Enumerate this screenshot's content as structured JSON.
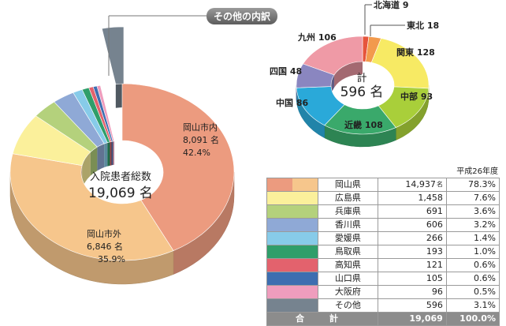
{
  "callout_label": "その他の内訳",
  "year_label": "平成26年度",
  "main_chart": {
    "center_title": "入院患者総数",
    "center_value": "19,069 名"
  },
  "region_chart": {
    "center_title": "計",
    "center_value": "596 名"
  },
  "chart_data": [
    {
      "type": "pie",
      "title": "入院患者総数",
      "total_label": "19,069 名",
      "slices": [
        {
          "label": "岡山市内",
          "count": "8,091 名",
          "percent": "42.4%",
          "value": 8091,
          "color": "#ec9b7f"
        },
        {
          "label": "岡山市外",
          "count": "6,846 名",
          "percent": "35.9%",
          "value": 6846,
          "color": "#f6c68c"
        },
        {
          "label": "広島県",
          "value": 1458,
          "color": "#fbf09b"
        },
        {
          "label": "兵庫県",
          "value": 691,
          "color": "#b4d17c"
        },
        {
          "label": "香川県",
          "value": 606,
          "color": "#8fa9d6"
        },
        {
          "label": "愛媛県",
          "value": 266,
          "color": "#87cbe9"
        },
        {
          "label": "鳥取県",
          "value": 193,
          "color": "#2f9e6a"
        },
        {
          "label": "高知県",
          "value": 121,
          "color": "#e3626d"
        },
        {
          "label": "山口県",
          "value": 105,
          "color": "#3d6eb0"
        },
        {
          "label": "大阪府",
          "value": 96,
          "color": "#ef9dbd"
        },
        {
          "label": "その他",
          "value": 596,
          "color": "#76838f"
        }
      ]
    },
    {
      "type": "pie",
      "title": "計",
      "total_label": "596 名",
      "slices": [
        {
          "label": "北海道",
          "value": 9,
          "color": "#e6543c"
        },
        {
          "label": "東北",
          "value": 18,
          "color": "#f29a4d"
        },
        {
          "label": "関東",
          "value": 128,
          "color": "#f7ea64"
        },
        {
          "label": "中部",
          "value": 93,
          "color": "#a9cf3a"
        },
        {
          "label": "近畿",
          "value": 108,
          "color": "#3aa96b"
        },
        {
          "label": "中国",
          "value": 86,
          "color": "#2aa9d9"
        },
        {
          "label": "四国",
          "value": 48,
          "color": "#8a86c0"
        },
        {
          "label": "九州",
          "value": 106,
          "color": "#ef9aa6"
        }
      ]
    },
    {
      "type": "table",
      "rows": [
        {
          "name": "岡山県",
          "count": "14,937",
          "unit": "名",
          "percent": "78.3%",
          "swatch": [
            "#ec9b7f",
            "#f6c68c"
          ]
        },
        {
          "name": "広島県",
          "count": "1,458",
          "percent": "7.6%",
          "swatch": [
            "#fbf09b"
          ]
        },
        {
          "name": "兵庫県",
          "count": "691",
          "percent": "3.6%",
          "swatch": [
            "#b4d17c"
          ]
        },
        {
          "name": "香川県",
          "count": "606",
          "percent": "3.2%",
          "swatch": [
            "#8fa9d6"
          ]
        },
        {
          "name": "愛媛県",
          "count": "266",
          "percent": "1.4%",
          "swatch": [
            "#87cbe9"
          ]
        },
        {
          "name": "鳥取県",
          "count": "193",
          "percent": "1.0%",
          "swatch": [
            "#2f9e6a"
          ]
        },
        {
          "name": "高知県",
          "count": "121",
          "percent": "0.6%",
          "swatch": [
            "#e3626d"
          ]
        },
        {
          "name": "山口県",
          "count": "105",
          "percent": "0.6%",
          "swatch": [
            "#3d6eb0"
          ]
        },
        {
          "name": "大阪府",
          "count": "96",
          "percent": "0.5%",
          "swatch": [
            "#ef9dbd"
          ]
        },
        {
          "name": "その他",
          "count": "596",
          "percent": "3.1%",
          "swatch": [
            "#76838f"
          ]
        }
      ],
      "total": {
        "label": "合 計",
        "count": "19,069",
        "percent": "100.0%"
      }
    }
  ]
}
